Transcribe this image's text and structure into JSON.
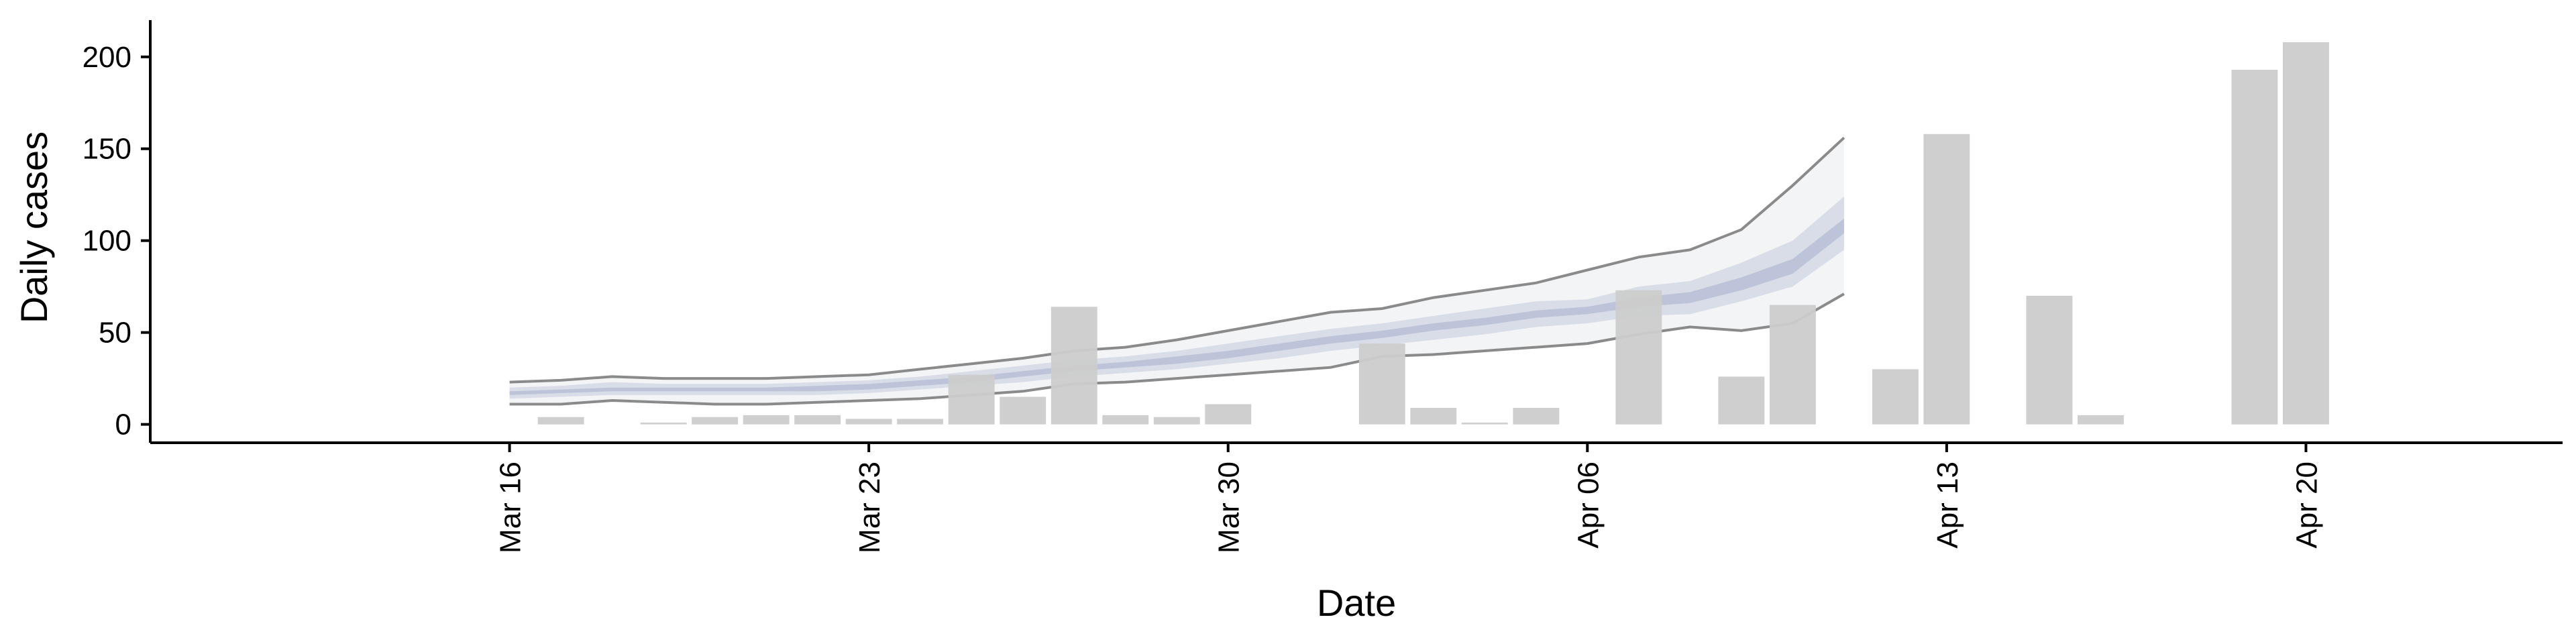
{
  "chart_data": {
    "type": "bar",
    "xlabel": "Date",
    "ylabel": "Daily cases",
    "ylim": [
      -10,
      220
    ],
    "xlim": [
      "2020-03-09",
      "2020-04-25"
    ],
    "yticks": [
      0,
      50,
      100,
      150,
      200
    ],
    "xticks": [
      {
        "date": "2020-03-16",
        "label": "Mar 16"
      },
      {
        "date": "2020-03-23",
        "label": "Mar 23"
      },
      {
        "date": "2020-03-30",
        "label": "Mar 30"
      },
      {
        "date": "2020-04-06",
        "label": "Apr 06"
      },
      {
        "date": "2020-04-13",
        "label": "Apr 13"
      },
      {
        "date": "2020-04-20",
        "label": "Apr 20"
      }
    ],
    "grid": false,
    "legend": "none",
    "bar_color": "#cccccc",
    "bars": [
      {
        "date": "2020-03-17",
        "value": 4
      },
      {
        "date": "2020-03-19",
        "value": 1
      },
      {
        "date": "2020-03-20",
        "value": 4
      },
      {
        "date": "2020-03-21",
        "value": 5
      },
      {
        "date": "2020-03-22",
        "value": 5
      },
      {
        "date": "2020-03-23",
        "value": 3
      },
      {
        "date": "2020-03-24",
        "value": 3
      },
      {
        "date": "2020-03-25",
        "value": 27
      },
      {
        "date": "2020-03-26",
        "value": 15
      },
      {
        "date": "2020-03-27",
        "value": 64
      },
      {
        "date": "2020-03-28",
        "value": 5
      },
      {
        "date": "2020-03-29",
        "value": 4
      },
      {
        "date": "2020-03-30",
        "value": 11
      },
      {
        "date": "2020-04-02",
        "value": 44
      },
      {
        "date": "2020-04-03",
        "value": 9
      },
      {
        "date": "2020-04-04",
        "value": 1
      },
      {
        "date": "2020-04-05",
        "value": 9
      },
      {
        "date": "2020-04-07",
        "value": 73
      },
      {
        "date": "2020-04-09",
        "value": 26
      },
      {
        "date": "2020-04-10",
        "value": 65
      },
      {
        "date": "2020-04-12",
        "value": 30
      },
      {
        "date": "2020-04-13",
        "value": 158
      },
      {
        "date": "2020-04-15",
        "value": 70
      },
      {
        "date": "2020-04-16",
        "value": 5
      },
      {
        "date": "2020-04-19",
        "value": 193
      },
      {
        "date": "2020-04-20",
        "value": 208
      }
    ],
    "bands": {
      "x": [
        "2020-03-16",
        "2020-03-17",
        "2020-03-18",
        "2020-03-19",
        "2020-03-20",
        "2020-03-21",
        "2020-03-22",
        "2020-03-23",
        "2020-03-24",
        "2020-03-25",
        "2020-03-26",
        "2020-03-27",
        "2020-03-28",
        "2020-03-29",
        "2020-03-30",
        "2020-03-31",
        "2020-04-01",
        "2020-04-02",
        "2020-04-03",
        "2020-04-04",
        "2020-04-05",
        "2020-04-06",
        "2020-04-07",
        "2020-04-08",
        "2020-04-09",
        "2020-04-10",
        "2020-04-11"
      ],
      "outer": {
        "color": "#c9ccd8",
        "opacity": 0.22,
        "line_color": "#777777",
        "lower": [
          11,
          11,
          13,
          12,
          11,
          11,
          12,
          13,
          14,
          16,
          18,
          22,
          23,
          25,
          27,
          29,
          31,
          37,
          38,
          40,
          42,
          44,
          49,
          53,
          51,
          55,
          71
        ],
        "upper": [
          23,
          24,
          26,
          25,
          25,
          25,
          26,
          27,
          30,
          33,
          36,
          40,
          42,
          46,
          51,
          56,
          61,
          63,
          69,
          73,
          77,
          84,
          91,
          95,
          106,
          130,
          156
        ]
      },
      "middle": {
        "color": "#aab3ce",
        "opacity": 0.35,
        "lower": [
          14,
          15,
          16,
          16,
          16,
          16,
          16,
          17,
          19,
          21,
          23,
          26,
          28,
          30,
          33,
          36,
          40,
          43,
          46,
          49,
          53,
          55,
          59,
          60,
          67,
          75,
          95
        ],
        "upper": [
          20,
          21,
          23,
          22,
          22,
          22,
          23,
          24,
          26,
          29,
          32,
          35,
          37,
          40,
          44,
          48,
          52,
          55,
          59,
          63,
          67,
          68,
          75,
          78,
          88,
          100,
          124
        ]
      },
      "inner": {
        "color": "#8a96bd",
        "opacity": 0.35,
        "lower": [
          16,
          17,
          18,
          18,
          18,
          18,
          18,
          19,
          21,
          23,
          26,
          29,
          31,
          33,
          36,
          40,
          44,
          47,
          51,
          54,
          58,
          60,
          64,
          66,
          73,
          82,
          104
        ],
        "upper": [
          18,
          19,
          20,
          20,
          20,
          20,
          21,
          22,
          24,
          26,
          29,
          32,
          34,
          37,
          40,
          44,
          48,
          51,
          55,
          58,
          62,
          64,
          69,
          72,
          80,
          90,
          112
        ]
      }
    }
  }
}
